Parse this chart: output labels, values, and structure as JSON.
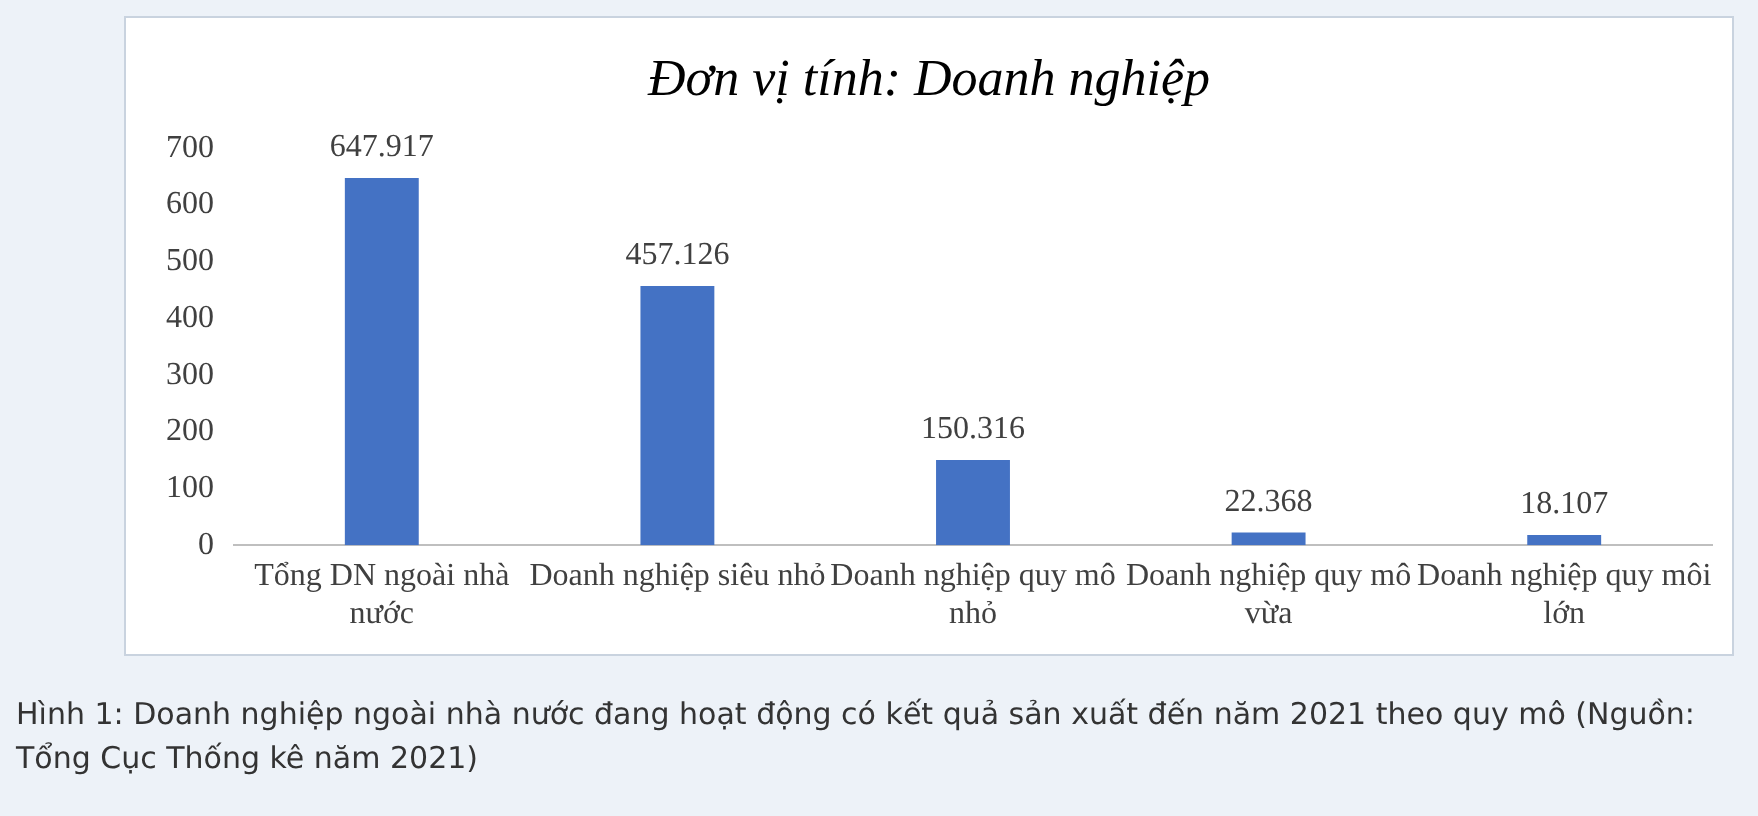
{
  "chart_data": {
    "type": "bar",
    "title": "Đơn vị tính: Doanh nghiệp",
    "categories": [
      "Tổng DN ngoài nhà nước",
      "Doanh nghiệp siêu nhỏ",
      "Doanh nghiệp quy mô nhỏ",
      "Doanh nghiệp quy mô vừa",
      "Doanh nghiệp quy môi lớn"
    ],
    "values": [
      647.917,
      457.126,
      150.316,
      22.368,
      18.107
    ],
    "value_labels": [
      "647.917",
      "457.126",
      "150.316",
      "22.368",
      "18.107"
    ],
    "color": "#4472c4",
    "ylim": [
      0,
      700
    ],
    "yticks": [
      0,
      100,
      200,
      300,
      400,
      500,
      600,
      700
    ],
    "grid": false,
    "legend": false,
    "annotations": [
      "Hình 1: Doanh nghiệp ngoài nhà nước đang hoạt động có kết quả sản xuất đến năm 2021 theo quy mô (Nguồn: Tổng Cục Thống kê năm 2021)"
    ]
  }
}
